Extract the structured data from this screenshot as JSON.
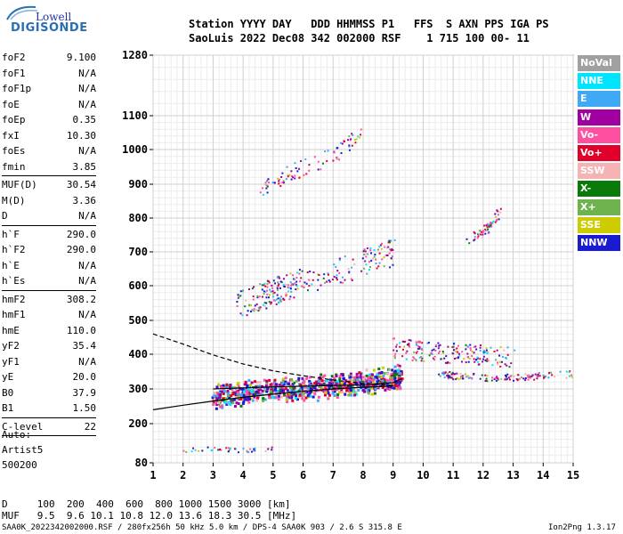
{
  "logo": {
    "top": "Lowell",
    "bottom": "DIGISONDE"
  },
  "header": {
    "line1": "Station YYYY DAY   DDD HHMMSS P1   FFS  S AXN PPS IGA PS",
    "line2": "SaoLuis 2022 Dec08 342 002000 RSF    1 715 100 00- 11"
  },
  "params": [
    {
      "k": "foF2",
      "v": "9.100"
    },
    {
      "k": "foF1",
      "v": "N/A"
    },
    {
      "k": "foF1p",
      "v": "N/A"
    },
    {
      "k": "foE",
      "v": "N/A"
    },
    {
      "k": "foEp",
      "v": "0.35"
    },
    {
      "k": "fxI",
      "v": "10.30"
    },
    {
      "k": "foEs",
      "v": "N/A"
    },
    {
      "k": "fmin",
      "v": "3.85"
    },
    {
      "k": "MUF(D)",
      "v": "30.54"
    },
    {
      "k": "M(D)",
      "v": "3.36"
    },
    {
      "k": "D",
      "v": "N/A"
    },
    {
      "k": "h`F",
      "v": "290.0"
    },
    {
      "k": "h`F2",
      "v": "290.0"
    },
    {
      "k": "h`E",
      "v": "N/A"
    },
    {
      "k": "h`Es",
      "v": "N/A"
    },
    {
      "k": "hmF2",
      "v": "308.2"
    },
    {
      "k": "hmF1",
      "v": "N/A"
    },
    {
      "k": "hmE",
      "v": "110.0"
    },
    {
      "k": "yF2",
      "v": "35.4"
    },
    {
      "k": "yF1",
      "v": "N/A"
    },
    {
      "k": "yE",
      "v": "20.0"
    },
    {
      "k": "B0",
      "v": "37.9"
    },
    {
      "k": "B1",
      "v": "1.50"
    },
    {
      "k": "C-level",
      "v": "22"
    }
  ],
  "auto": {
    "line1": "Auto:",
    "line2": "Artist5",
    "line3": "500200"
  },
  "legend": [
    {
      "label": "NoVal",
      "color": "#a0a0a0"
    },
    {
      "label": "NNE",
      "color": "#00e5ff"
    },
    {
      "label": "E",
      "color": "#3fa9f5"
    },
    {
      "label": "W",
      "color": "#a0009f"
    },
    {
      "label": "Vo-",
      "color": "#ff4fa0"
    },
    {
      "label": "Vo+",
      "color": "#e0002a"
    },
    {
      "label": "SSW",
      "color": "#f5b3b3"
    },
    {
      "label": "X-",
      "color": "#0a7a0a"
    },
    {
      "label": "X+",
      "color": "#6fb34f"
    },
    {
      "label": "SSE",
      "color": "#cccc00"
    },
    {
      "label": "NNW",
      "color": "#1a1ad0"
    }
  ],
  "footer": {
    "d_row": "D     100  200  400  600  800 1000 1500 3000 [km]",
    "muf_row": "MUF   9.5  9.6 10.1 10.8 12.0 13.6 18.3 30.5 [MHz]",
    "file_line": "SAA0K_2022342002000.RSF / 280fx256h 50 kHz 5.0 km / DPS-4 SAA0K 903 / 2.6 S 315.8 E",
    "version": "Ion2Png 1.3.17"
  },
  "chart_data": {
    "type": "scatter",
    "title": "",
    "xlabel": "",
    "ylabel": "",
    "xlim": [
      1,
      15
    ],
    "ylim": [
      80,
      1280
    ],
    "x_ticks": [
      1,
      2,
      3,
      4,
      5,
      6,
      7,
      8,
      9,
      10,
      11,
      12,
      13,
      14,
      15
    ],
    "y_ticks": [
      80,
      200,
      300,
      400,
      500,
      600,
      700,
      800,
      900,
      1000,
      1100,
      1280
    ],
    "grid": true,
    "traces": [
      {
        "name": "",
        "points": [
          [
            3.0,
            280
          ],
          [
            3.5,
            285
          ],
          [
            4.0,
            292
          ],
          [
            4.5,
            298
          ],
          [
            5.0,
            300
          ],
          [
            5.5,
            302
          ],
          [
            6.0,
            305
          ],
          [
            6.5,
            308
          ],
          [
            7.0,
            312
          ],
          [
            7.5,
            316
          ],
          [
            8.0,
            322
          ],
          [
            8.5,
            328
          ],
          [
            9.0,
            335
          ],
          [
            9.2,
            340
          ]
        ]
      },
      {
        "name": "",
        "points": [
          [
            3.8,
            550
          ],
          [
            4.5,
            570
          ],
          [
            5.0,
            585
          ],
          [
            5.5,
            600
          ],
          [
            6.0,
            615
          ],
          [
            7.0,
            640
          ],
          [
            8.0,
            670
          ],
          [
            8.5,
            690
          ],
          [
            9.0,
            700
          ]
        ]
      },
      {
        "name": "",
        "points": [
          [
            4.5,
            890
          ],
          [
            5.0,
            910
          ],
          [
            5.5,
            930
          ],
          [
            6.0,
            950
          ],
          [
            7.0,
            990
          ],
          [
            7.5,
            1020
          ],
          [
            8.0,
            1060
          ]
        ]
      },
      {
        "name": "",
        "points": [
          [
            11.5,
            740
          ],
          [
            12.0,
            760
          ],
          [
            12.3,
            790
          ],
          [
            12.5,
            815
          ]
        ]
      },
      {
        "name": "",
        "points": [
          [
            10.5,
            345
          ],
          [
            11.0,
            340
          ],
          [
            12.0,
            335
          ],
          [
            13.0,
            335
          ],
          [
            14.0,
            340
          ],
          [
            15.0,
            345
          ]
        ]
      },
      {
        "name": "",
        "points": [
          [
            2.0,
            120
          ],
          [
            2.5,
            122
          ],
          [
            3.0,
            125
          ],
          [
            3.5,
            122
          ],
          [
            4.0,
            120
          ],
          [
            4.5,
            122
          ],
          [
            5.0,
            125
          ]
        ]
      },
      {
        "name": "",
        "points": [
          [
            9.0,
            420
          ],
          [
            10.0,
            410
          ],
          [
            11.0,
            405
          ],
          [
            12.0,
            400
          ],
          [
            13.0,
            395
          ]
        ]
      }
    ],
    "curves": [
      {
        "name": "",
        "style": "solid",
        "points": [
          [
            1.0,
            240
          ],
          [
            2.0,
            253
          ],
          [
            3.0,
            265
          ],
          [
            4.0,
            276
          ],
          [
            5.0,
            285
          ],
          [
            6.0,
            293
          ],
          [
            7.0,
            300
          ],
          [
            8.0,
            305
          ],
          [
            9.0,
            308
          ]
        ]
      },
      {
        "name": "",
        "style": "solid",
        "points": [
          [
            3.0,
            300
          ],
          [
            4.0,
            303
          ],
          [
            5.0,
            306
          ],
          [
            6.0,
            308
          ],
          [
            7.0,
            310
          ],
          [
            8.0,
            312
          ],
          [
            9.0,
            318
          ],
          [
            9.3,
            330
          ]
        ]
      },
      {
        "name": "",
        "style": "dashed",
        "points": [
          [
            1.0,
            460
          ],
          [
            2.0,
            430
          ],
          [
            3.0,
            398
          ],
          [
            4.0,
            372
          ],
          [
            5.0,
            352
          ],
          [
            6.0,
            338
          ],
          [
            7.0,
            326
          ],
          [
            8.0,
            316
          ],
          [
            9.0,
            310
          ]
        ]
      }
    ]
  }
}
